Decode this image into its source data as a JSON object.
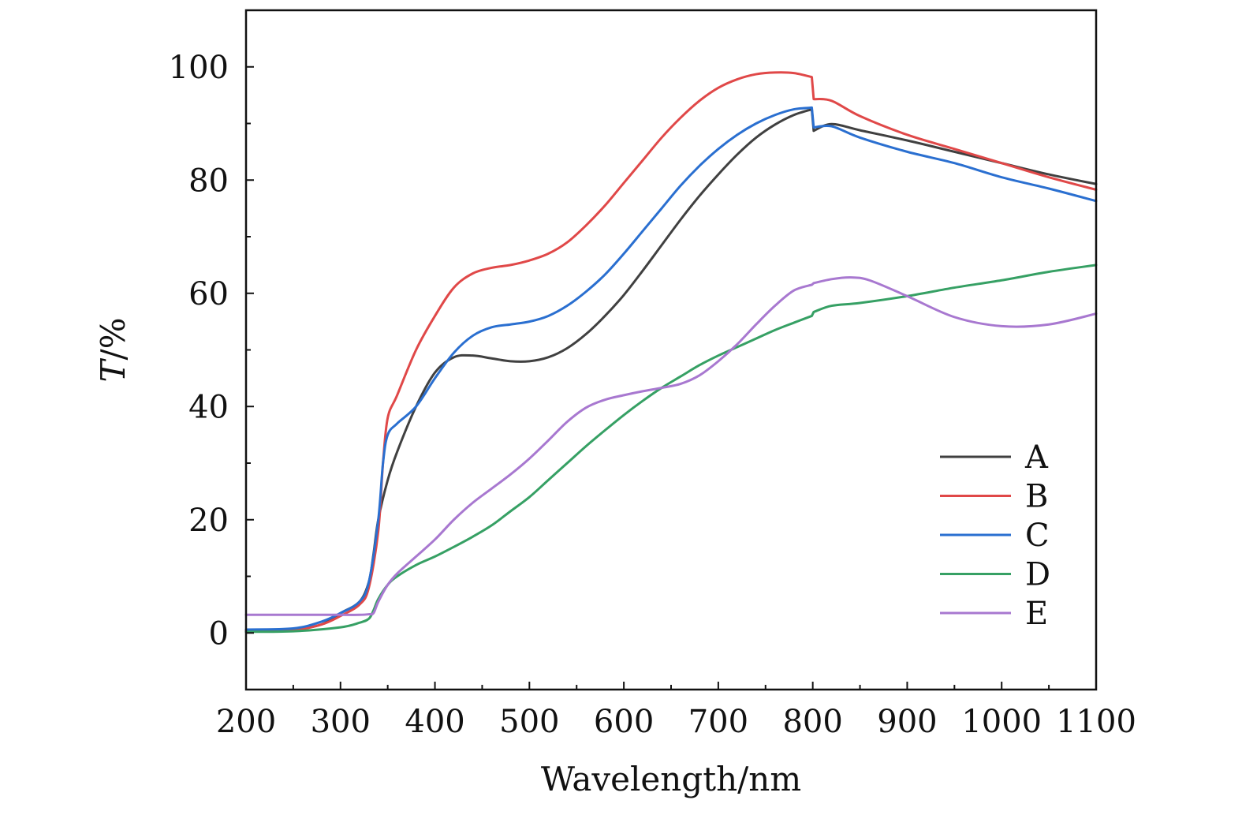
{
  "chart_data": {
    "type": "line",
    "title": "",
    "xlabel": "Wavelength/nm",
    "ylabel": {
      "italic": "T",
      "rest": "/%"
    },
    "xlim": [
      200,
      1100
    ],
    "ylim": [
      -10,
      110
    ],
    "x_ticks": [
      200,
      300,
      400,
      500,
      600,
      700,
      800,
      900,
      1000,
      1100
    ],
    "x_tick_labels": [
      "200",
      "300",
      "400",
      "500",
      "600",
      "700",
      "800",
      "900",
      "1000",
      "1100"
    ],
    "y_ticks": [
      0,
      20,
      40,
      60,
      80,
      100
    ],
    "y_tick_labels": [
      "0",
      "20",
      "40",
      "60",
      "80",
      "100"
    ],
    "grid": false,
    "legend_position": "bottom-right",
    "series": [
      {
        "name": "A",
        "color": "#404040",
        "x": [
          200,
          250,
          280,
          300,
          320,
          330,
          335,
          340,
          350,
          360,
          380,
          400,
          420,
          440,
          460,
          480,
          500,
          520,
          540,
          560,
          580,
          600,
          620,
          640,
          660,
          680,
          700,
          720,
          740,
          760,
          780,
          799,
          801,
          820,
          850,
          900,
          950,
          1000,
          1050,
          1100
        ],
        "y": [
          0.3,
          0.6,
          1.5,
          3.5,
          5.5,
          9,
          14,
          20,
          27,
          32,
          40,
          46,
          48.7,
          49,
          48.5,
          48,
          48,
          48.7,
          50.3,
          52.8,
          56,
          59.7,
          64,
          68.5,
          73,
          77.2,
          81,
          84.5,
          87.5,
          89.8,
          91.5,
          92.5,
          88.7,
          89.9,
          88.8,
          87,
          85,
          83,
          81,
          79.3
        ]
      },
      {
        "name": "B",
        "color": "#e04848",
        "x": [
          200,
          250,
          280,
          300,
          320,
          330,
          340,
          345,
          350,
          360,
          380,
          400,
          420,
          440,
          460,
          480,
          500,
          520,
          540,
          560,
          580,
          600,
          620,
          640,
          660,
          680,
          700,
          720,
          740,
          760,
          780,
          799,
          801,
          820,
          850,
          900,
          950,
          1000,
          1050,
          1100
        ],
        "y": [
          0.3,
          0.5,
          1.5,
          3,
          5,
          8,
          18,
          30,
          38,
          42,
          50,
          56,
          61,
          63.5,
          64.5,
          65,
          65.8,
          67,
          69,
          72,
          75.5,
          79.5,
          83.5,
          87.5,
          91,
          94,
          96.3,
          97.8,
          98.7,
          99,
          98.9,
          98.2,
          94.3,
          94,
          91.3,
          88,
          85.5,
          83,
          80.5,
          78.3
        ]
      },
      {
        "name": "C",
        "color": "#2a6fd0",
        "x": [
          200,
          250,
          280,
          300,
          320,
          330,
          340,
          345,
          350,
          360,
          380,
          400,
          420,
          440,
          460,
          480,
          500,
          520,
          540,
          560,
          580,
          600,
          620,
          640,
          660,
          680,
          700,
          720,
          740,
          760,
          780,
          799,
          801,
          820,
          850,
          900,
          950,
          1000,
          1050,
          1100
        ],
        "y": [
          0.6,
          0.8,
          2,
          3.5,
          5.5,
          9,
          20,
          30,
          35,
          37,
          40,
          45,
          49.5,
          52.5,
          54,
          54.5,
          55,
          56,
          57.8,
          60.3,
          63.3,
          67,
          71,
          75,
          79,
          82.5,
          85.5,
          88,
          90,
          91.5,
          92.5,
          92.8,
          89.3,
          89.5,
          87.5,
          85,
          83,
          80.5,
          78.5,
          76.3
        ]
      },
      {
        "name": "D",
        "color": "#36a064",
        "x": [
          200,
          250,
          300,
          320,
          330,
          335,
          340,
          350,
          360,
          380,
          400,
          420,
          440,
          460,
          480,
          500,
          520,
          540,
          560,
          580,
          600,
          620,
          640,
          660,
          680,
          700,
          720,
          740,
          760,
          780,
          799,
          801,
          820,
          850,
          900,
          950,
          1000,
          1050,
          1100
        ],
        "y": [
          0.2,
          0.3,
          1,
          1.8,
          2.5,
          4,
          6,
          8.5,
          10,
          12,
          13.5,
          15.2,
          17,
          19,
          21.5,
          24,
          27,
          30,
          33,
          35.8,
          38.5,
          41,
          43.3,
          45.3,
          47.3,
          49,
          50.5,
          52,
          53.5,
          54.8,
          56,
          56.7,
          57.8,
          58.3,
          59.5,
          61,
          62.3,
          63.8,
          65
        ]
      },
      {
        "name": "E",
        "color": "#a878d0",
        "x": [
          200,
          250,
          300,
          320,
          330,
          335,
          340,
          350,
          360,
          380,
          400,
          420,
          440,
          460,
          480,
          500,
          520,
          540,
          560,
          580,
          600,
          620,
          640,
          660,
          680,
          700,
          720,
          740,
          760,
          780,
          799,
          801,
          820,
          840,
          860,
          900,
          950,
          1000,
          1050,
          1100
        ],
        "y": [
          3.2,
          3.2,
          3.2,
          3.2,
          3.3,
          3.5,
          5.5,
          8.5,
          10.5,
          13.5,
          16.5,
          20,
          23,
          25.5,
          28,
          30.8,
          34,
          37.3,
          39.8,
          41.2,
          42,
          42.7,
          43.3,
          44,
          45.5,
          48,
          51,
          54.5,
          57.8,
          60.5,
          61.5,
          61.8,
          62.5,
          62.8,
          62.3,
          59.5,
          55.8,
          54.2,
          54.5,
          56.4
        ]
      }
    ]
  }
}
